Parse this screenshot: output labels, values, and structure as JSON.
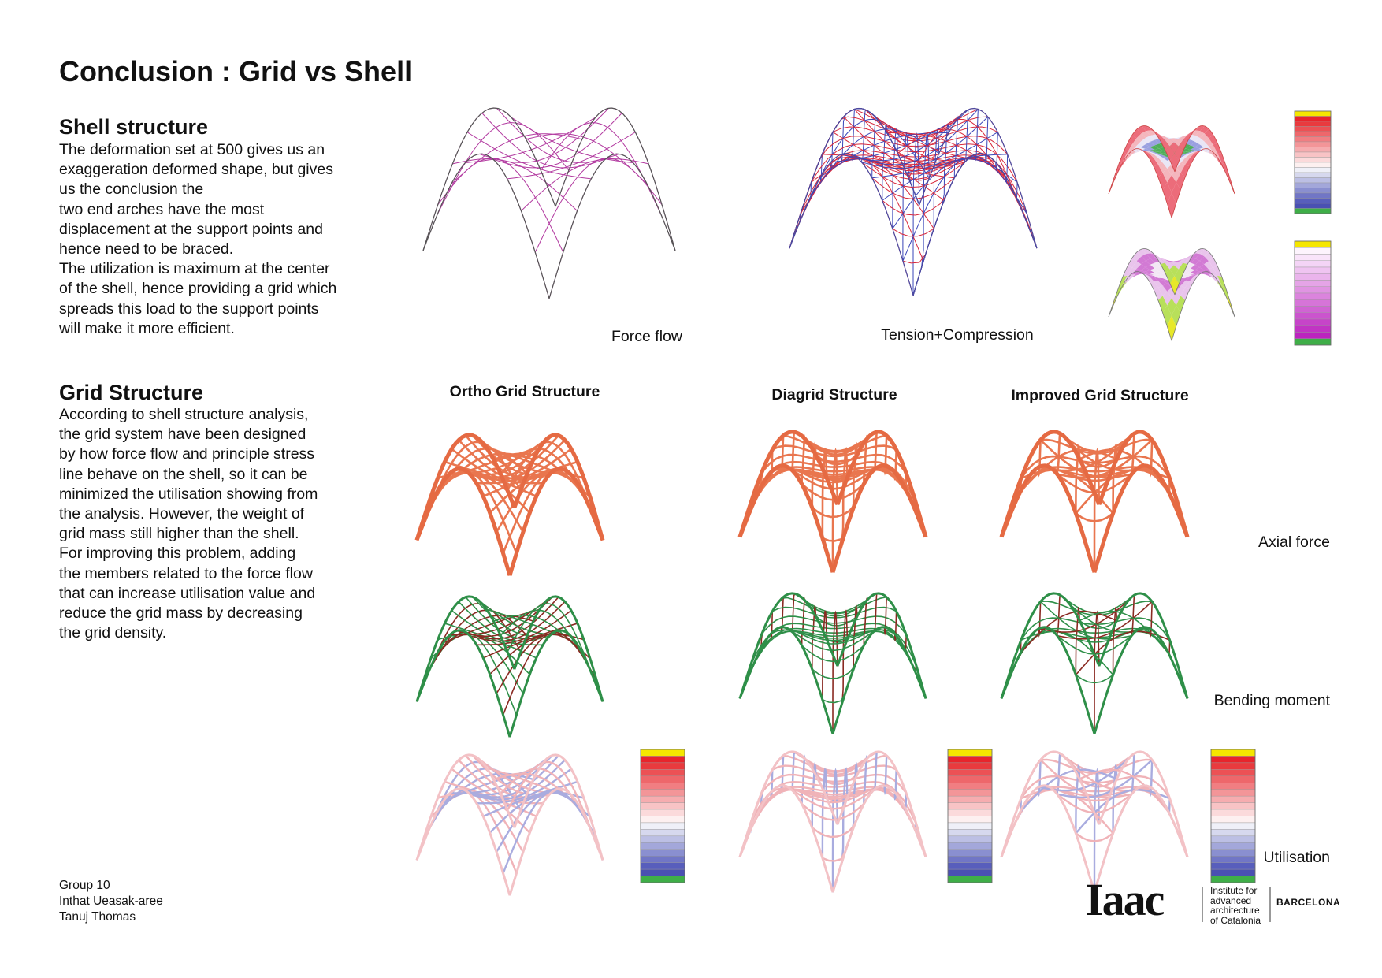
{
  "header": {
    "title": "Conclusion : Grid vs Shell"
  },
  "shell": {
    "heading": "Shell structure",
    "lines": [
      "The deformation set at 500 gives us an",
      "exaggeration deformed shape, but gives",
      "us the conclusion the",
      "two end arches have the most",
      "displacement at the support points and",
      "hence need to be braced.",
      "The utilization is maximum at the center",
      "of the shell, hence providing a grid which",
      "spreads this load to the support points",
      "will make it more efficient."
    ],
    "captions": [
      "Force flow",
      "Tension+Compression"
    ]
  },
  "grid": {
    "heading": "Grid Structure",
    "lines": [
      "According to shell structure analysis,",
      "the grid system have been designed",
      "by  how force flow and principle stress",
      "line behave on the shell, so it can be",
      "minimized the utilisation showing from",
      "the analysis. However, the weight of",
      "grid mass still higher than the shell.",
      "For improving this problem, adding",
      "the members related to the force flow",
      "that can increase utilisation value and",
      "reduce the grid mass by decreasing",
      "the grid density."
    ],
    "columns": [
      "Ortho Grid Structure",
      "Diagrid Structure",
      "Improved Grid Structure"
    ],
    "rows": [
      "Axial force",
      "Bending moment",
      "Utilisation"
    ]
  },
  "footer": {
    "lines": [
      "Group 10",
      "Inthat Ueasak-aree",
      "Tanuj Thomas"
    ]
  },
  "logo": {
    "mark": "Iaac",
    "lines": [
      "Institute for",
      "advanced",
      "architecture",
      "of Catalonia"
    ],
    "city": "BARCELONA"
  }
}
